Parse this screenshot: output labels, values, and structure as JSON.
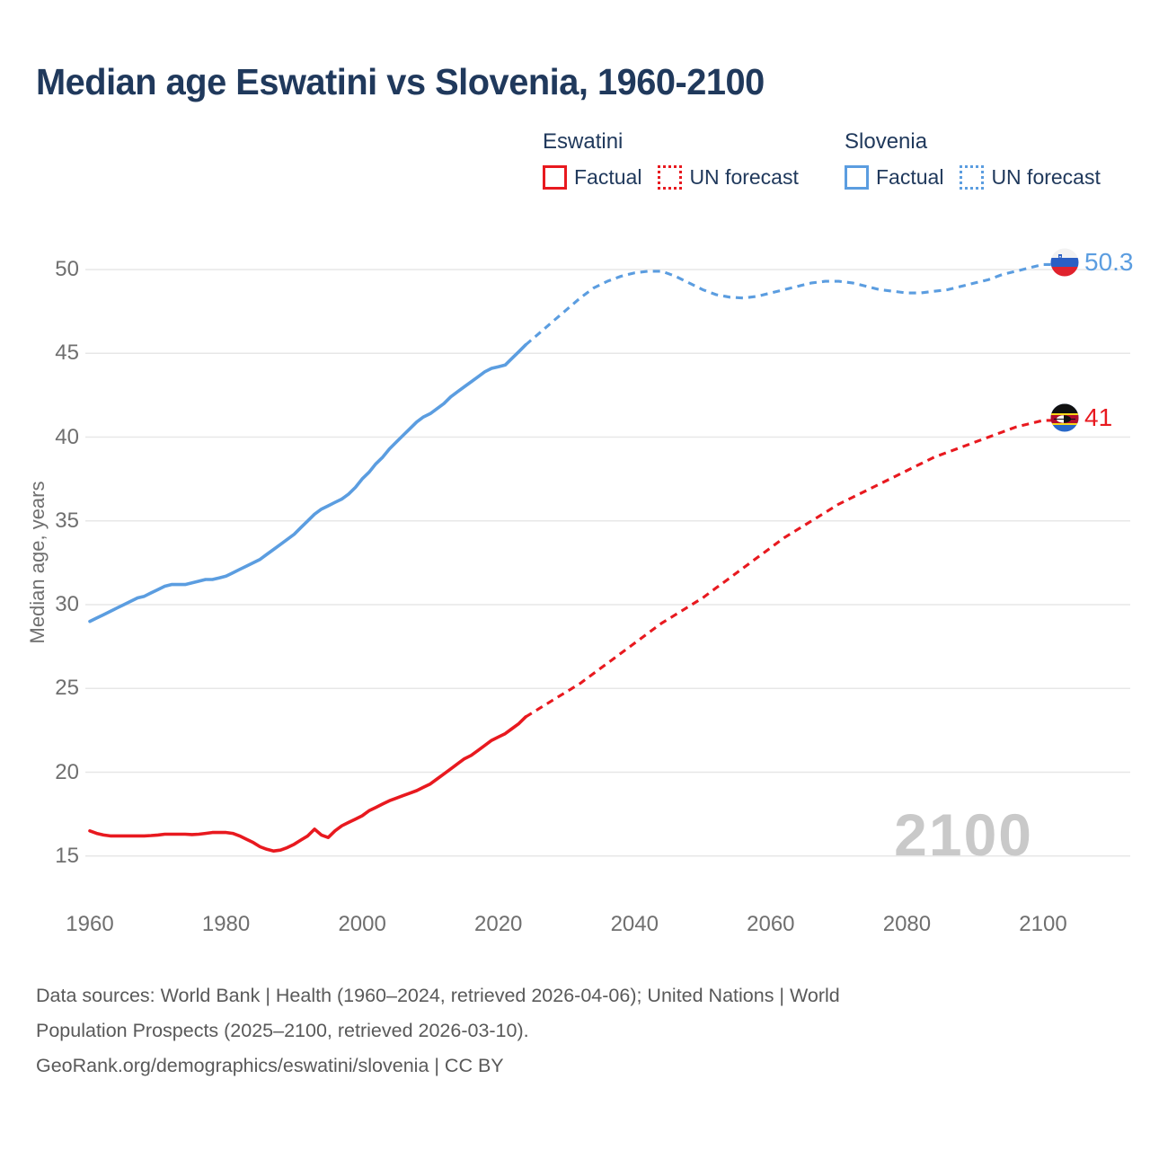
{
  "title": "Median age Eswatini vs Slovenia, 1960-2100",
  "legend": {
    "groups": [
      {
        "country": "Eswatini",
        "color": "#e8191f",
        "items": [
          {
            "label": "Factual",
            "style": "solid"
          },
          {
            "label": "UN forecast",
            "style": "dotted"
          }
        ]
      },
      {
        "country": "Slovenia",
        "color": "#5b9de0",
        "items": [
          {
            "label": "Factual",
            "style": "solid"
          },
          {
            "label": "UN forecast",
            "style": "dotted"
          }
        ]
      }
    ]
  },
  "watermark": "2100",
  "endpoints": {
    "slovenia": {
      "value": "50.3",
      "color": "#5b9de0",
      "flag": "slovenia-flag-icon"
    },
    "eswatini": {
      "value": "41",
      "color": "#e8191f",
      "flag": "eswatini-flag-icon"
    }
  },
  "footer": {
    "lines": [
      "Data sources: World Bank | Health (1960–2024, retrieved 2026-04-06); United Nations | World",
      "Population Prospects (2025–2100, retrieved 2026-03-10).",
      "GeoRank.org/demographics/eswatini/slovenia | CC BY"
    ]
  },
  "chart_data": {
    "type": "line",
    "title": "Median age Eswatini vs Slovenia, 1960-2100",
    "xlabel": "",
    "ylabel": "Median age, years",
    "xlim": [
      1960,
      2100
    ],
    "ylim": [
      15,
      50
    ],
    "xticks": [
      1960,
      1980,
      2000,
      2020,
      2040,
      2060,
      2080,
      2100
    ],
    "yticks": [
      50,
      45,
      40,
      35,
      30,
      25,
      20,
      15
    ],
    "grid": true,
    "legend_position": "top",
    "series": [
      {
        "name": "Eswatini Factual",
        "country": "Eswatini",
        "kind": "factual",
        "color": "#e8191f",
        "dash": false,
        "points": [
          [
            1960,
            16.5
          ],
          [
            1961,
            16.35
          ],
          [
            1962,
            16.25
          ],
          [
            1963,
            16.2
          ],
          [
            1964,
            16.2
          ],
          [
            1965,
            16.2
          ],
          [
            1966,
            16.2
          ],
          [
            1967,
            16.2
          ],
          [
            1968,
            16.2
          ],
          [
            1969,
            16.22
          ],
          [
            1970,
            16.25
          ],
          [
            1971,
            16.3
          ],
          [
            1972,
            16.3
          ],
          [
            1973,
            16.3
          ],
          [
            1974,
            16.3
          ],
          [
            1975,
            16.28
          ],
          [
            1976,
            16.3
          ],
          [
            1977,
            16.35
          ],
          [
            1978,
            16.4
          ],
          [
            1979,
            16.4
          ],
          [
            1980,
            16.4
          ],
          [
            1981,
            16.35
          ],
          [
            1982,
            16.2
          ],
          [
            1983,
            16.0
          ],
          [
            1984,
            15.8
          ],
          [
            1985,
            15.55
          ],
          [
            1986,
            15.4
          ],
          [
            1987,
            15.3
          ],
          [
            1988,
            15.35
          ],
          [
            1989,
            15.5
          ],
          [
            1990,
            15.7
          ],
          [
            1991,
            15.95
          ],
          [
            1992,
            16.2
          ],
          [
            1993,
            16.6
          ],
          [
            1994,
            16.25
          ],
          [
            1995,
            16.1
          ],
          [
            1996,
            16.5
          ],
          [
            1997,
            16.8
          ],
          [
            1998,
            17.0
          ],
          [
            1999,
            17.2
          ],
          [
            2000,
            17.4
          ],
          [
            2001,
            17.7
          ],
          [
            2002,
            17.9
          ],
          [
            2003,
            18.1
          ],
          [
            2004,
            18.3
          ],
          [
            2005,
            18.45
          ],
          [
            2006,
            18.6
          ],
          [
            2007,
            18.75
          ],
          [
            2008,
            18.9
          ],
          [
            2009,
            19.1
          ],
          [
            2010,
            19.3
          ],
          [
            2011,
            19.6
          ],
          [
            2012,
            19.9
          ],
          [
            2013,
            20.2
          ],
          [
            2014,
            20.5
          ],
          [
            2015,
            20.8
          ],
          [
            2016,
            21.0
          ],
          [
            2017,
            21.3
          ],
          [
            2018,
            21.6
          ],
          [
            2019,
            21.9
          ],
          [
            2020,
            22.1
          ],
          [
            2021,
            22.3
          ],
          [
            2022,
            22.6
          ],
          [
            2023,
            22.9
          ],
          [
            2024,
            23.3
          ]
        ]
      },
      {
        "name": "Eswatini UN forecast",
        "country": "Eswatini",
        "kind": "forecast",
        "color": "#e8191f",
        "dash": true,
        "points": [
          [
            2024,
            23.3
          ],
          [
            2026,
            23.8
          ],
          [
            2028,
            24.3
          ],
          [
            2030,
            24.8
          ],
          [
            2032,
            25.3
          ],
          [
            2034,
            25.9
          ],
          [
            2036,
            26.5
          ],
          [
            2038,
            27.1
          ],
          [
            2040,
            27.7
          ],
          [
            2042,
            28.3
          ],
          [
            2044,
            28.9
          ],
          [
            2046,
            29.4
          ],
          [
            2048,
            29.9
          ],
          [
            2050,
            30.4
          ],
          [
            2052,
            31.0
          ],
          [
            2054,
            31.6
          ],
          [
            2056,
            32.2
          ],
          [
            2058,
            32.8
          ],
          [
            2060,
            33.4
          ],
          [
            2062,
            34.0
          ],
          [
            2064,
            34.5
          ],
          [
            2066,
            35.0
          ],
          [
            2068,
            35.5
          ],
          [
            2070,
            36.0
          ],
          [
            2072,
            36.4
          ],
          [
            2074,
            36.8
          ],
          [
            2076,
            37.2
          ],
          [
            2078,
            37.6
          ],
          [
            2080,
            38.0
          ],
          [
            2082,
            38.4
          ],
          [
            2084,
            38.8
          ],
          [
            2086,
            39.1
          ],
          [
            2088,
            39.4
          ],
          [
            2090,
            39.7
          ],
          [
            2092,
            40.0
          ],
          [
            2094,
            40.3
          ],
          [
            2096,
            40.6
          ],
          [
            2098,
            40.8
          ],
          [
            2100,
            41.0
          ]
        ]
      },
      {
        "name": "Slovenia Factual",
        "country": "Slovenia",
        "kind": "factual",
        "color": "#5b9de0",
        "dash": false,
        "points": [
          [
            1960,
            29.0
          ],
          [
            1961,
            29.2
          ],
          [
            1962,
            29.4
          ],
          [
            1963,
            29.6
          ],
          [
            1964,
            29.8
          ],
          [
            1965,
            30.0
          ],
          [
            1966,
            30.2
          ],
          [
            1967,
            30.4
          ],
          [
            1968,
            30.5
          ],
          [
            1969,
            30.7
          ],
          [
            1970,
            30.9
          ],
          [
            1971,
            31.1
          ],
          [
            1972,
            31.2
          ],
          [
            1973,
            31.2
          ],
          [
            1974,
            31.2
          ],
          [
            1975,
            31.3
          ],
          [
            1976,
            31.4
          ],
          [
            1977,
            31.5
          ],
          [
            1978,
            31.5
          ],
          [
            1979,
            31.6
          ],
          [
            1980,
            31.7
          ],
          [
            1981,
            31.9
          ],
          [
            1982,
            32.1
          ],
          [
            1983,
            32.3
          ],
          [
            1984,
            32.5
          ],
          [
            1985,
            32.7
          ],
          [
            1986,
            33.0
          ],
          [
            1987,
            33.3
          ],
          [
            1988,
            33.6
          ],
          [
            1989,
            33.9
          ],
          [
            1990,
            34.2
          ],
          [
            1991,
            34.6
          ],
          [
            1992,
            35.0
          ],
          [
            1993,
            35.4
          ],
          [
            1994,
            35.7
          ],
          [
            1995,
            35.9
          ],
          [
            1996,
            36.1
          ],
          [
            1997,
            36.3
          ],
          [
            1998,
            36.6
          ],
          [
            1999,
            37.0
          ],
          [
            2000,
            37.5
          ],
          [
            2001,
            37.9
          ],
          [
            2002,
            38.4
          ],
          [
            2003,
            38.8
          ],
          [
            2004,
            39.3
          ],
          [
            2005,
            39.7
          ],
          [
            2006,
            40.1
          ],
          [
            2007,
            40.5
          ],
          [
            2008,
            40.9
          ],
          [
            2009,
            41.2
          ],
          [
            2010,
            41.4
          ],
          [
            2011,
            41.7
          ],
          [
            2012,
            42.0
          ],
          [
            2013,
            42.4
          ],
          [
            2014,
            42.7
          ],
          [
            2015,
            43.0
          ],
          [
            2016,
            43.3
          ],
          [
            2017,
            43.6
          ],
          [
            2018,
            43.9
          ],
          [
            2019,
            44.1
          ],
          [
            2020,
            44.2
          ],
          [
            2021,
            44.3
          ],
          [
            2022,
            44.7
          ],
          [
            2023,
            45.1
          ],
          [
            2024,
            45.5
          ]
        ]
      },
      {
        "name": "Slovenia UN forecast",
        "country": "Slovenia",
        "kind": "forecast",
        "color": "#5b9de0",
        "dash": true,
        "points": [
          [
            2024,
            45.5
          ],
          [
            2026,
            46.2
          ],
          [
            2028,
            46.9
          ],
          [
            2030,
            47.6
          ],
          [
            2032,
            48.3
          ],
          [
            2034,
            48.9
          ],
          [
            2036,
            49.3
          ],
          [
            2038,
            49.6
          ],
          [
            2040,
            49.8
          ],
          [
            2042,
            49.9
          ],
          [
            2044,
            49.9
          ],
          [
            2046,
            49.6
          ],
          [
            2048,
            49.2
          ],
          [
            2050,
            48.8
          ],
          [
            2052,
            48.5
          ],
          [
            2054,
            48.35
          ],
          [
            2056,
            48.3
          ],
          [
            2058,
            48.4
          ],
          [
            2060,
            48.6
          ],
          [
            2062,
            48.8
          ],
          [
            2064,
            49.0
          ],
          [
            2066,
            49.2
          ],
          [
            2068,
            49.3
          ],
          [
            2070,
            49.3
          ],
          [
            2072,
            49.2
          ],
          [
            2074,
            49.0
          ],
          [
            2076,
            48.8
          ],
          [
            2078,
            48.7
          ],
          [
            2080,
            48.6
          ],
          [
            2082,
            48.6
          ],
          [
            2084,
            48.7
          ],
          [
            2086,
            48.8
          ],
          [
            2088,
            49.0
          ],
          [
            2090,
            49.2
          ],
          [
            2092,
            49.4
          ],
          [
            2094,
            49.7
          ],
          [
            2096,
            49.9
          ],
          [
            2098,
            50.1
          ],
          [
            2100,
            50.3
          ]
        ]
      }
    ],
    "end_annotations": [
      {
        "series": "Slovenia UN forecast",
        "year": 2100,
        "value": 50.3,
        "label": "50.3"
      },
      {
        "series": "Eswatini UN forecast",
        "year": 2100,
        "value": 41,
        "label": "41"
      }
    ]
  }
}
